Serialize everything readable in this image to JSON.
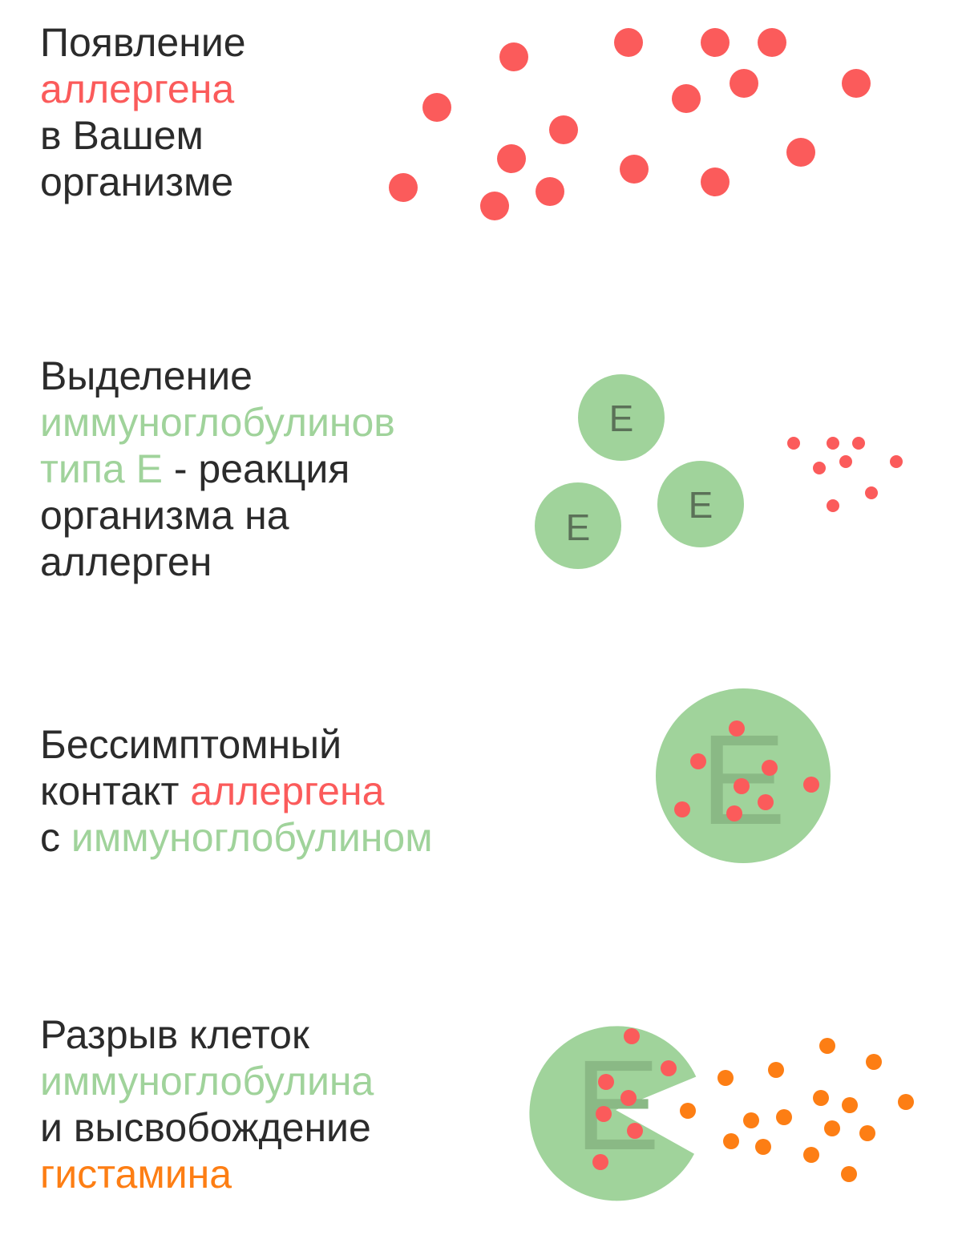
{
  "colors": {
    "text": "#2b2b2b",
    "allergen": "#fb5b5b",
    "immunoglobulin": "#a0d39b",
    "immunoglobulin_letter": "#5b7158",
    "histamine": "#fd7e14"
  },
  "steps": [
    {
      "lines": [
        [
          {
            "t": "Появление",
            "c": "text"
          }
        ],
        [
          {
            "t": "аллергена",
            "c": "red"
          }
        ],
        [
          {
            "t": "в Вашем",
            "c": "text"
          }
        ],
        [
          {
            "t": "организме",
            "c": "text"
          }
        ]
      ]
    },
    {
      "lines": [
        [
          {
            "t": "Выделение",
            "c": "text"
          }
        ],
        [
          {
            "t": "иммуноглобулинов",
            "c": "green"
          }
        ],
        [
          {
            "t": "типа Е",
            "c": "green"
          },
          {
            "t": " - реакция",
            "c": "text"
          }
        ],
        [
          {
            "t": "организма на",
            "c": "text"
          }
        ],
        [
          {
            "t": "аллерген",
            "c": "text"
          }
        ]
      ],
      "cell_letter": "E"
    },
    {
      "lines": [
        [
          {
            "t": "Бессимптомный",
            "c": "text"
          }
        ],
        [
          {
            "t": "контакт ",
            "c": "text"
          },
          {
            "t": "аллергена",
            "c": "red"
          }
        ],
        [
          {
            "t": "с ",
            "c": "text"
          },
          {
            "t": "иммуноглобулином",
            "c": "green"
          }
        ]
      ],
      "cell_letter": "E"
    },
    {
      "lines": [
        [
          {
            "t": "Разрыв клеток",
            "c": "text"
          }
        ],
        [
          {
            "t": "иммуноглобулина",
            "c": "green"
          }
        ],
        [
          {
            "t": "и высвобождение",
            "c": "text"
          }
        ],
        [
          {
            "t": "гистамина",
            "c": "orange"
          }
        ]
      ],
      "cell_letter": "E"
    }
  ]
}
